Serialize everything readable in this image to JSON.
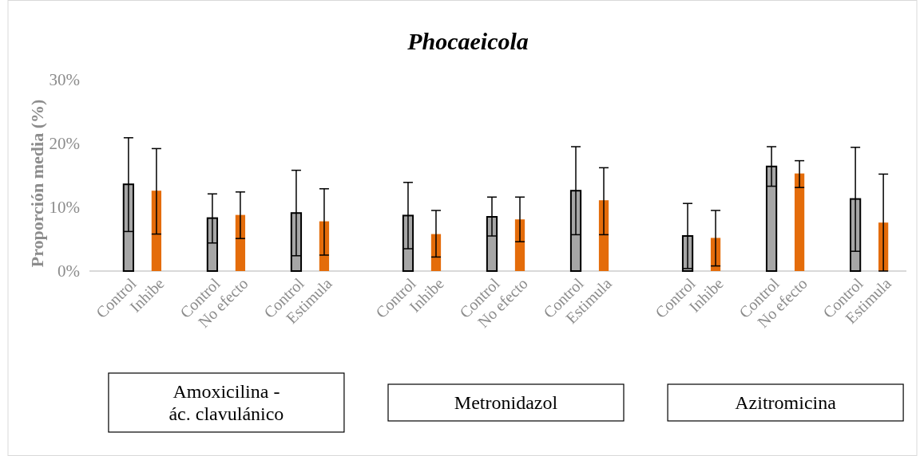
{
  "chart_data": {
    "type": "bar",
    "title": "Phocaeicola",
    "ylabel": "Proporción media (%)",
    "categories": [
      "Control",
      "Inhibe",
      null,
      "Control",
      "No efecto",
      null,
      "Control",
      "Estimula",
      null,
      null,
      "Control",
      "Inhibe",
      null,
      "Control",
      "No efecto",
      null,
      "Control",
      "Estimula",
      null,
      null,
      "Control",
      "Inhibe",
      null,
      "Control",
      "No efecto",
      null,
      "Control",
      "Estimula"
    ],
    "series": [
      {
        "color": "#a6a6a6",
        "values": [
          13.6,
          null,
          null,
          8.3,
          null,
          null,
          9.1,
          null,
          null,
          null,
          8.7,
          null,
          null,
          8.5,
          null,
          null,
          12.6,
          null,
          null,
          null,
          5.5,
          null,
          null,
          16.4,
          null,
          null,
          11.3,
          null
        ],
        "errors": [
          [
            6.2,
            20.9
          ],
          null,
          null,
          [
            4.4,
            12.1
          ],
          null,
          null,
          [
            2.4,
            15.8
          ],
          null,
          null,
          null,
          [
            3.5,
            13.9
          ],
          null,
          null,
          [
            5.5,
            11.6
          ],
          null,
          null,
          [
            5.7,
            19.5
          ],
          null,
          null,
          null,
          [
            0.4,
            10.6
          ],
          null,
          null,
          [
            13.3,
            19.5
          ],
          null,
          null,
          [
            3.1,
            19.4
          ],
          null
        ]
      },
      {
        "color": "#e46c0a",
        "values": [
          null,
          12.6,
          null,
          null,
          8.8,
          null,
          null,
          7.8,
          null,
          null,
          null,
          5.8,
          null,
          null,
          8.1,
          null,
          null,
          11.1,
          null,
          null,
          null,
          5.2,
          null,
          null,
          15.3,
          null,
          null,
          7.6
        ],
        "errors": [
          null,
          [
            5.8,
            19.2
          ],
          null,
          null,
          [
            5.1,
            12.4
          ],
          null,
          null,
          [
            2.5,
            12.9
          ],
          null,
          null,
          null,
          [
            2.2,
            9.5
          ],
          null,
          null,
          [
            4.6,
            11.6
          ],
          null,
          null,
          [
            5.7,
            16.2
          ],
          null,
          null,
          null,
          [
            0.8,
            9.5
          ],
          null,
          null,
          [
            13.1,
            17.3
          ],
          null,
          null,
          [
            0,
            15.2
          ]
        ]
      }
    ],
    "ylim": [
      0,
      30
    ],
    "yticks": [
      {
        "value": 0,
        "label": "0%"
      },
      {
        "value": 10,
        "label": "10%"
      },
      {
        "value": 20,
        "label": "20%"
      },
      {
        "value": 30,
        "label": "30%"
      }
    ],
    "grid": false,
    "annotations": [
      "Amoxicilina - ác. clavulánico",
      "Metronidazol",
      "Azitromicina"
    ]
  }
}
